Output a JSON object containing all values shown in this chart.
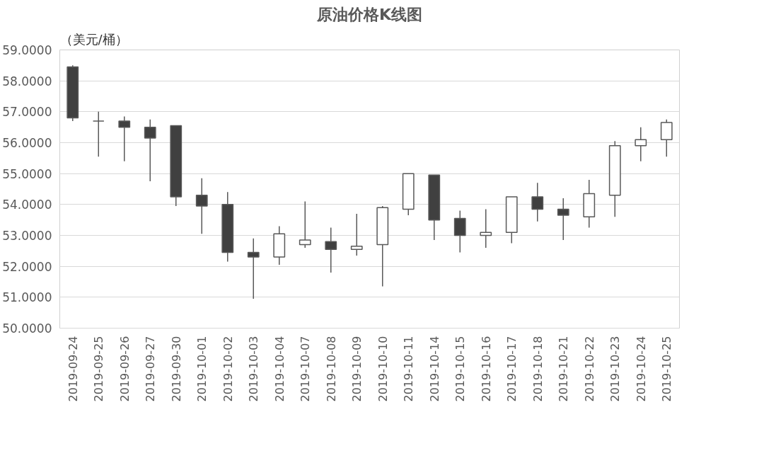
{
  "chart_data": {
    "type": "candlestick",
    "title": "原油价格K线图",
    "ylabel": "（美元/桶）",
    "categories": [
      "2019-09-24",
      "2019-09-25",
      "2019-09-26",
      "2019-09-27",
      "2019-09-30",
      "2019-10-01",
      "2019-10-02",
      "2019-10-03",
      "2019-10-04",
      "2019-10-07",
      "2019-10-08",
      "2019-10-09",
      "2019-10-10",
      "2019-10-11",
      "2019-10-14",
      "2019-10-15",
      "2019-10-16",
      "2019-10-17",
      "2019-10-18",
      "2019-10-21",
      "2019-10-22",
      "2019-10-23",
      "2019-10-24",
      "2019-10-25"
    ],
    "ohlc": [
      [
        58.45,
        58.5,
        56.7,
        56.8
      ],
      [
        56.7,
        57.0,
        55.55,
        56.7
      ],
      [
        56.7,
        56.85,
        55.4,
        56.5
      ],
      [
        56.5,
        56.75,
        54.75,
        56.15
      ],
      [
        56.55,
        56.55,
        53.95,
        54.25
      ],
      [
        54.3,
        54.85,
        53.05,
        53.95
      ],
      [
        54.0,
        54.4,
        52.15,
        52.45
      ],
      [
        52.45,
        52.9,
        50.95,
        52.3
      ],
      [
        52.3,
        53.3,
        52.05,
        53.05
      ],
      [
        52.7,
        54.1,
        52.6,
        52.85
      ],
      [
        52.8,
        53.25,
        51.8,
        52.55
      ],
      [
        52.55,
        53.7,
        52.35,
        52.65
      ],
      [
        52.7,
        53.95,
        51.35,
        53.9
      ],
      [
        53.85,
        55.0,
        53.65,
        55.0
      ],
      [
        54.95,
        54.95,
        52.85,
        53.5
      ],
      [
        53.55,
        53.8,
        52.45,
        53.0
      ],
      [
        53.0,
        53.85,
        52.6,
        53.1
      ],
      [
        53.1,
        54.25,
        52.75,
        54.25
      ],
      [
        54.25,
        54.7,
        53.45,
        53.85
      ],
      [
        53.85,
        54.2,
        52.85,
        53.65
      ],
      [
        53.6,
        54.8,
        53.25,
        54.35
      ],
      [
        54.3,
        56.05,
        53.6,
        55.9
      ],
      [
        55.9,
        56.5,
        55.4,
        56.1
      ],
      [
        56.1,
        56.75,
        55.55,
        56.65
      ]
    ],
    "ylim": [
      50,
      59
    ],
    "yticks": [
      {
        "value": 50,
        "label": "50.0000"
      },
      {
        "value": 51,
        "label": "51.0000"
      },
      {
        "value": 52,
        "label": "52.0000"
      },
      {
        "value": 53,
        "label": "53.0000"
      },
      {
        "value": 54,
        "label": "54.0000"
      },
      {
        "value": 55,
        "label": "55.0000"
      },
      {
        "value": 56,
        "label": "56.0000"
      },
      {
        "value": 57,
        "label": "57.0000"
      },
      {
        "value": 58,
        "label": "58.0000"
      },
      {
        "value": 59,
        "label": "59.0000"
      }
    ],
    "grid": "y"
  }
}
